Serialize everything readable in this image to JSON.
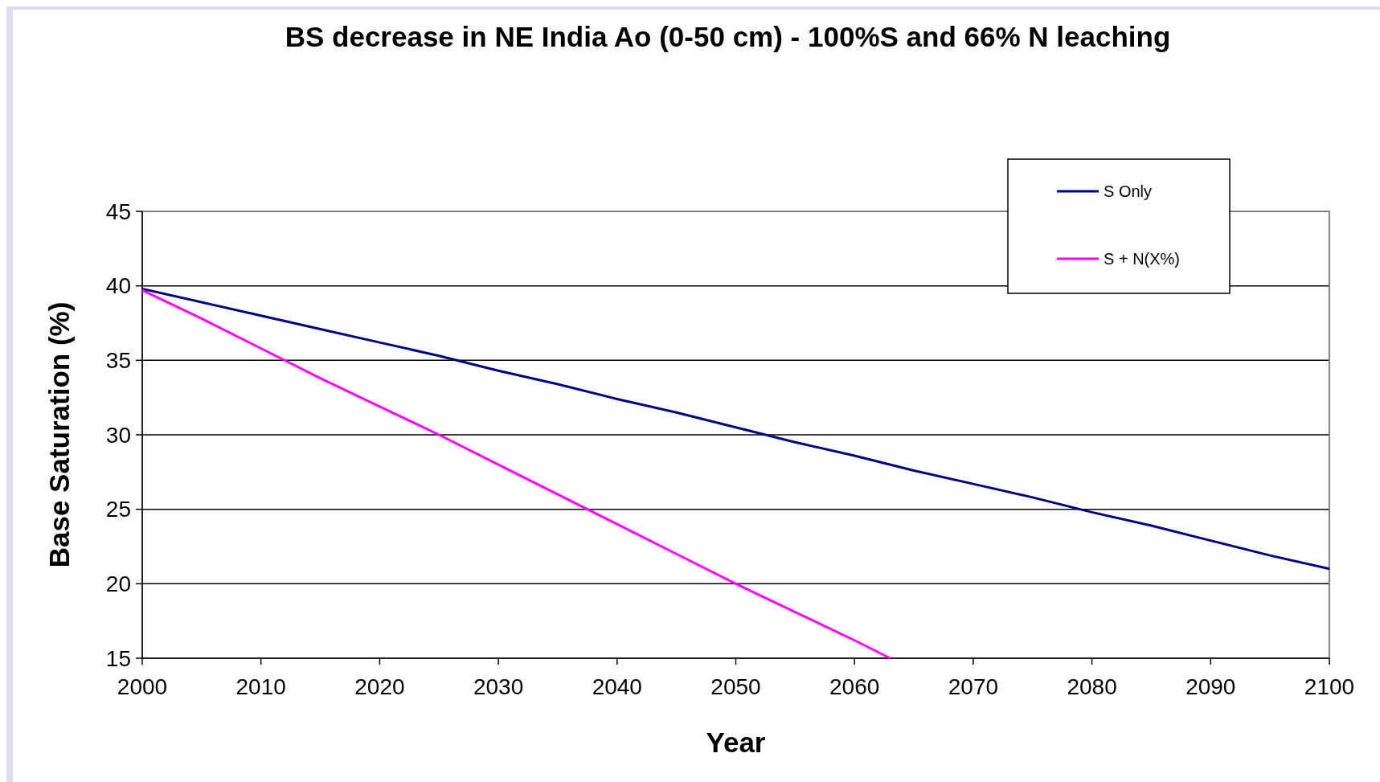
{
  "chart_data": {
    "type": "line",
    "title": "BS decrease in NE India Ao (0-50 cm) - 100%S and 66% N leaching",
    "xlabel": "Year",
    "ylabel": "Base Saturation (%)",
    "xlim": [
      2000,
      2100
    ],
    "xticks": [
      2000,
      2010,
      2020,
      2030,
      2040,
      2050,
      2060,
      2070,
      2080,
      2090,
      2100
    ],
    "ylim": [
      15,
      45
    ],
    "yticks": [
      15,
      20,
      25,
      30,
      35,
      40,
      45
    ],
    "grid": "y",
    "legend": "top right",
    "line_style": "solid",
    "series": [
      {
        "name": "S Only",
        "color": "#000080",
        "x": [
          2000,
          2005,
          2010,
          2015,
          2020,
          2025,
          2030,
          2035,
          2040,
          2045,
          2050,
          2055,
          2060,
          2065,
          2070,
          2075,
          2080,
          2085,
          2090,
          2095,
          2100
        ],
        "values": [
          39.8,
          38.9,
          38.0,
          37.1,
          36.2,
          35.3,
          34.3,
          33.4,
          32.4,
          31.5,
          30.5,
          29.5,
          28.6,
          27.6,
          26.7,
          25.8,
          24.8,
          23.9,
          22.9,
          21.9,
          21.0
        ]
      },
      {
        "name": "S + N(X%)",
        "color": "#ff00ff",
        "x": [
          2000,
          2005,
          2010,
          2015,
          2020,
          2025,
          2030,
          2035,
          2040,
          2045,
          2050,
          2055,
          2060,
          2063
        ],
        "values": [
          39.7,
          37.8,
          35.8,
          33.8,
          31.9,
          30.0,
          28.0,
          26.0,
          24.0,
          22.0,
          20.0,
          18.1,
          16.2,
          15.0
        ]
      }
    ]
  }
}
